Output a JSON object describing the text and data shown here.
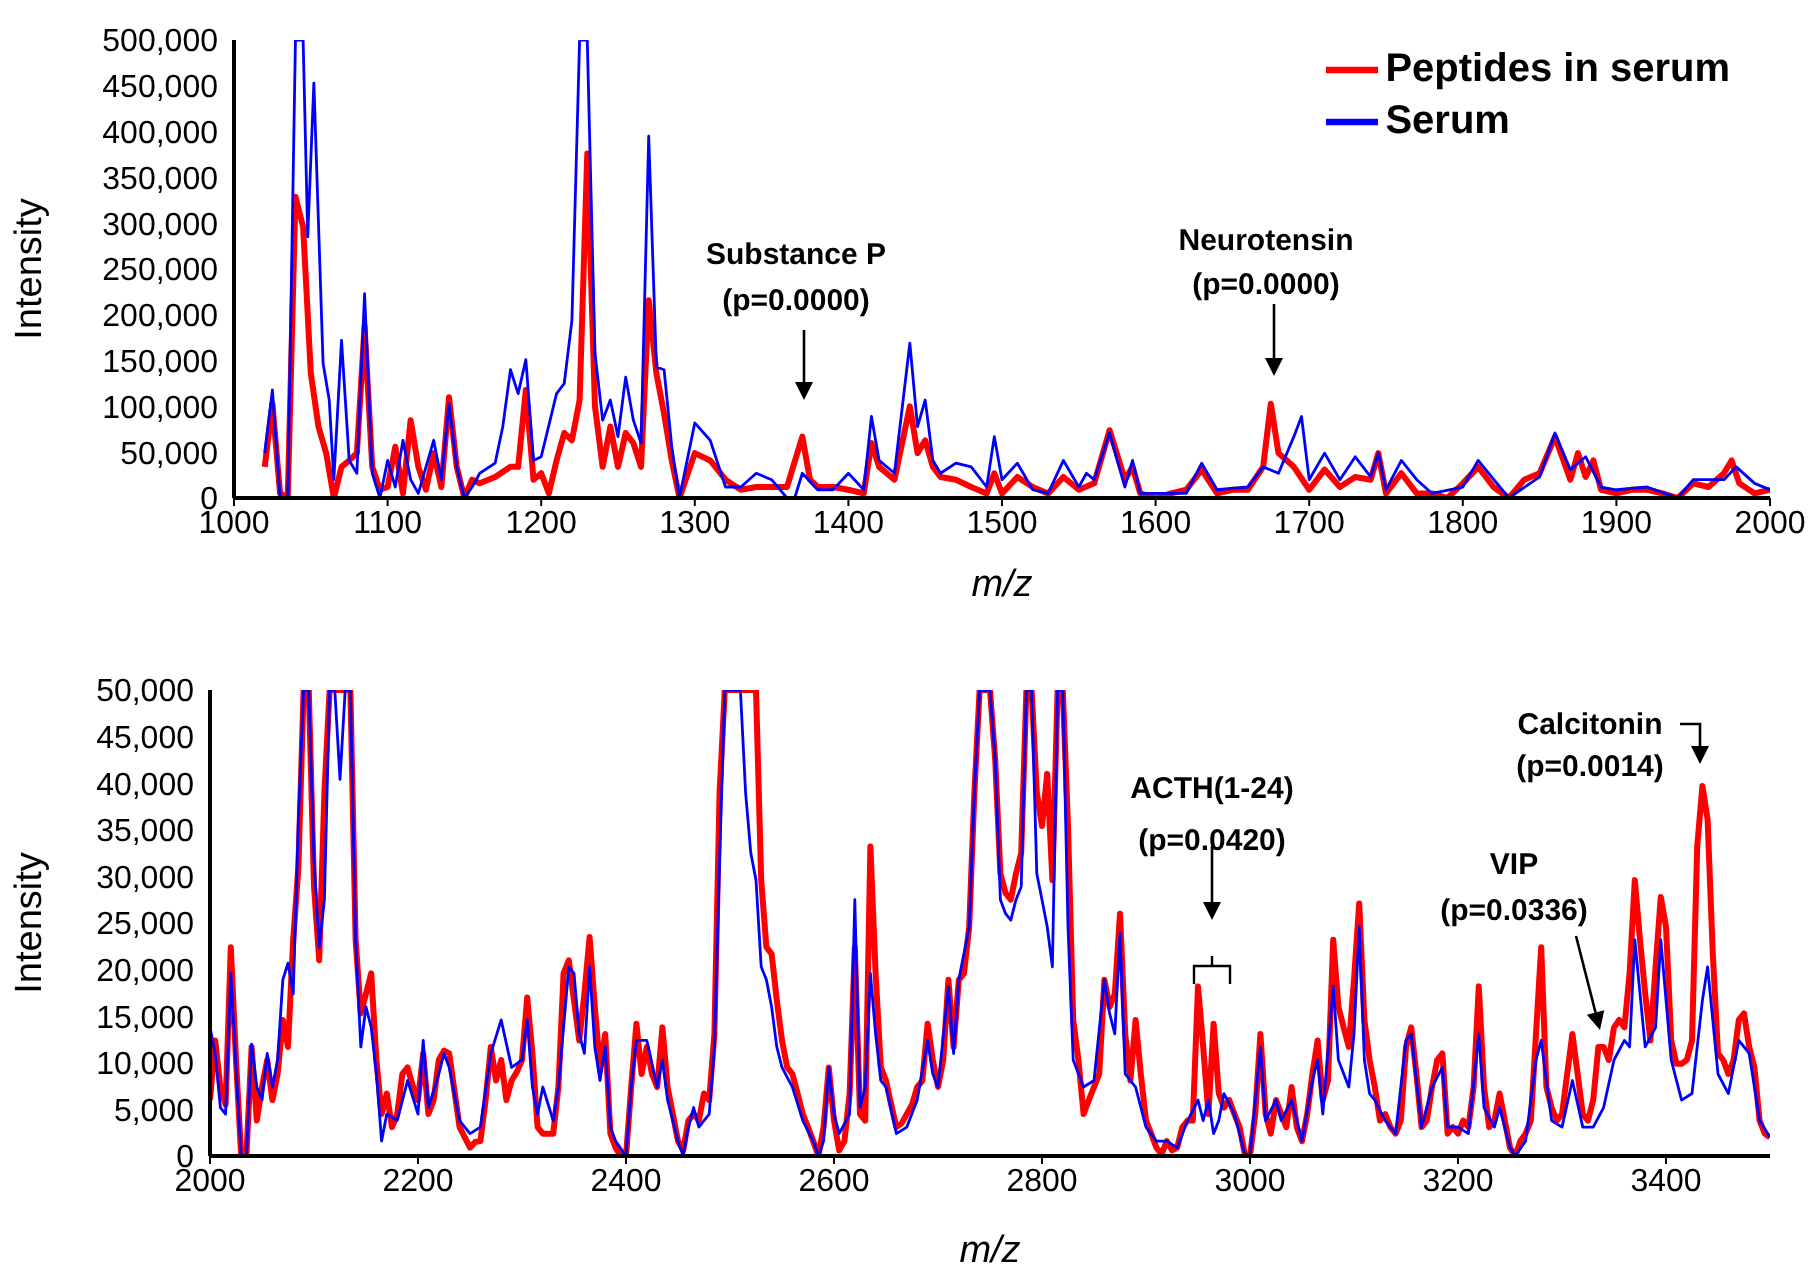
{
  "chart_data": [
    {
      "type": "line",
      "xlabel": "m/z",
      "ylabel": "Intensity",
      "xlim": [
        1000,
        2000
      ],
      "xticks": [
        1000,
        1100,
        1200,
        1300,
        1400,
        1500,
        1600,
        1700,
        1800,
        1900,
        2000
      ],
      "ylim": [
        0,
        500000
      ],
      "yticks": [
        0,
        {
          "value": 50000,
          "label": "50,000"
        },
        {
          "value": 100000,
          "label": "100,000"
        },
        {
          "value": 150000,
          "label": "150,000"
        },
        {
          "value": 200000,
          "label": "200,000"
        },
        {
          "value": 250000,
          "label": "250,000"
        },
        {
          "value": 300000,
          "label": "300,000"
        },
        {
          "value": 350000,
          "label": "350,000"
        },
        {
          "value": 400000,
          "label": "400,000"
        },
        {
          "value": 450000,
          "label": "450,000"
        },
        {
          "value": 500000,
          "label": "500,000"
        }
      ],
      "legend": "top right",
      "series": [
        {
          "name": "Peptides in serum",
          "color": "#ff0000",
          "x": [
            1020,
            1025,
            1030,
            1035,
            1040,
            1045,
            1050,
            1055,
            1060,
            1065,
            1070,
            1075,
            1080,
            1085,
            1090,
            1095,
            1100,
            1105,
            1110,
            1115,
            1120,
            1125,
            1130,
            1135,
            1140,
            1145,
            1150,
            1155,
            1160,
            1170,
            1180,
            1185,
            1190,
            1195,
            1200,
            1205,
            1210,
            1215,
            1220,
            1225,
            1230,
            1235,
            1240,
            1245,
            1250,
            1255,
            1260,
            1265,
            1270,
            1275,
            1280,
            1285,
            1290,
            1300,
            1310,
            1320,
            1330,
            1340,
            1350,
            1360,
            1370,
            1375,
            1380,
            1390,
            1400,
            1410,
            1415,
            1420,
            1430,
            1440,
            1445,
            1450,
            1455,
            1460,
            1470,
            1480,
            1490,
            1495,
            1500,
            1510,
            1520,
            1530,
            1540,
            1550,
            1560,
            1570,
            1580,
            1585,
            1590,
            1600,
            1610,
            1620,
            1630,
            1640,
            1650,
            1660,
            1670,
            1675,
            1680,
            1690,
            1700,
            1710,
            1720,
            1730,
            1740,
            1745,
            1750,
            1760,
            1770,
            1780,
            1790,
            1800,
            1810,
            1820,
            1830,
            1840,
            1850,
            1860,
            1870,
            1875,
            1880,
            1885,
            1890,
            1900,
            1910,
            1920,
            1930,
            1940,
            1950,
            1960,
            1970,
            1975,
            1980,
            1990,
            2000
          ],
          "values": [
            34000,
            103000,
            5000,
            0,
            329000,
            296000,
            136000,
            78000,
            49000,
            0,
            34000,
            41000,
            49000,
            187000,
            34000,
            9000,
            12000,
            56000,
            5000,
            85000,
            34000,
            9000,
            49000,
            12000,
            110000,
            34000,
            0,
            20000,
            16000,
            23000,
            34000,
            34000,
            118000,
            20000,
            27000,
            5000,
            41000,
            71000,
            63000,
            107000,
            376000,
            100000,
            34000,
            78000,
            34000,
            71000,
            60000,
            34000,
            216000,
            136000,
            92000,
            41000,
            0,
            49000,
            41000,
            20000,
            9000,
            12000,
            12000,
            12000,
            67000,
            20000,
            12000,
            12000,
            9000,
            5000,
            60000,
            34000,
            20000,
            100000,
            49000,
            63000,
            34000,
            23000,
            20000,
            12000,
            5000,
            27000,
            5000,
            23000,
            12000,
            5000,
            23000,
            9000,
            16000,
            74000,
            20000,
            34000,
            5000,
            0,
            5000,
            9000,
            31000,
            5000,
            9000,
            9000,
            34000,
            103000,
            49000,
            34000,
            9000,
            31000,
            12000,
            23000,
            20000,
            49000,
            5000,
            27000,
            5000,
            5000,
            0,
            16000,
            34000,
            12000,
            0,
            20000,
            27000,
            67000,
            20000,
            49000,
            23000,
            41000,
            9000,
            5000,
            9000,
            9000,
            5000,
            0,
            16000,
            12000,
            27000,
            41000,
            16000,
            5000,
            9000
          ]
        },
        {
          "name": "Serum",
          "color": "#0000ff",
          "x": [
            1020,
            1025,
            1030,
            1035,
            1040,
            1045,
            1048,
            1052,
            1058,
            1062,
            1065,
            1070,
            1075,
            1080,
            1085,
            1090,
            1095,
            1100,
            1105,
            1110,
            1115,
            1120,
            1130,
            1135,
            1140,
            1145,
            1150,
            1155,
            1160,
            1170,
            1175,
            1180,
            1185,
            1190,
            1195,
            1200,
            1210,
            1215,
            1220,
            1225,
            1230,
            1235,
            1240,
            1245,
            1250,
            1255,
            1260,
            1265,
            1270,
            1275,
            1280,
            1285,
            1290,
            1300,
            1310,
            1320,
            1330,
            1340,
            1350,
            1360,
            1365,
            1370,
            1380,
            1390,
            1400,
            1410,
            1415,
            1420,
            1430,
            1440,
            1445,
            1450,
            1455,
            1460,
            1470,
            1480,
            1490,
            1495,
            1500,
            1510,
            1520,
            1530,
            1540,
            1550,
            1555,
            1560,
            1570,
            1580,
            1585,
            1590,
            1600,
            1620,
            1630,
            1640,
            1660,
            1670,
            1680,
            1690,
            1695,
            1700,
            1710,
            1720,
            1730,
            1740,
            1745,
            1750,
            1760,
            1770,
            1780,
            1800,
            1810,
            1830,
            1850,
            1860,
            1870,
            1880,
            1890,
            1900,
            1920,
            1940,
            1950,
            1970,
            1978,
            1990,
            2000
          ],
          "values": [
            49000,
            118000,
            0,
            0,
            500000,
            500000,
            285000,
            453000,
            147000,
            107000,
            20000,
            172000,
            41000,
            27000,
            223000,
            27000,
            0,
            41000,
            12000,
            63000,
            20000,
            5000,
            63000,
            20000,
            103000,
            34000,
            0,
            12000,
            27000,
            38000,
            78000,
            140000,
            114000,
            151000,
            41000,
            45000,
            114000,
            125000,
            194000,
            500000,
            500000,
            158000,
            85000,
            107000,
            67000,
            132000,
            85000,
            60000,
            395000,
            143000,
            140000,
            56000,
            0,
            82000,
            63000,
            12000,
            12000,
            27000,
            20000,
            0,
            0,
            27000,
            9000,
            9000,
            27000,
            9000,
            89000,
            41000,
            27000,
            169000,
            78000,
            107000,
            41000,
            27000,
            38000,
            34000,
            12000,
            67000,
            20000,
            38000,
            9000,
            5000,
            41000,
            12000,
            27000,
            20000,
            71000,
            12000,
            41000,
            5000,
            5000,
            5000,
            38000,
            9000,
            12000,
            34000,
            27000,
            67000,
            89000,
            20000,
            49000,
            20000,
            45000,
            23000,
            49000,
            9000,
            41000,
            20000,
            5000,
            12000,
            41000,
            0,
            23000,
            71000,
            31000,
            45000,
            12000,
            9000,
            12000,
            0,
            20000,
            20000,
            34000,
            16000,
            9000
          ]
        }
      ],
      "annotations": [
        "Substance P\n(p=0.0000)",
        "Neurotensin\n(p=0.0000)"
      ]
    },
    {
      "type": "line",
      "xlabel": "m/z",
      "ylabel": "Intensity",
      "xlim": [
        2000,
        3500
      ],
      "xticks": [
        2000,
        2200,
        2400,
        2600,
        2800,
        3000,
        3200,
        3400
      ],
      "ylim": [
        0,
        50000
      ],
      "yticks": [
        0,
        {
          "value": 5000,
          "label": "5,000"
        },
        {
          "value": 10000,
          "label": "10,000"
        },
        {
          "value": 15000,
          "label": "15,000"
        },
        {
          "value": 20000,
          "label": "20,000"
        },
        {
          "value": 25000,
          "label": "25,000"
        },
        {
          "value": 30000,
          "label": "30,000"
        },
        {
          "value": 35000,
          "label": "35,000"
        },
        {
          "value": 40000,
          "label": "40,000"
        },
        {
          "value": 45000,
          "label": "45,000"
        },
        {
          "value": 50000,
          "label": "50,000"
        }
      ],
      "series": [
        {
          "color": "#ff0000",
          "x": [
            2000,
            2005,
            2010,
            2015,
            2020,
            2025,
            2030,
            2035,
            2040,
            2045,
            2050,
            2055,
            2060,
            2065,
            2070,
            2075,
            2080,
            2085,
            2090,
            2095,
            2100,
            2105,
            2110,
            2115,
            2120,
            2125,
            2130,
            2135,
            2140,
            2145,
            2150,
            2155,
            2160,
            2165,
            2170,
            2175,
            2180,
            2185,
            2190,
            2195,
            2200,
            2205,
            2210,
            2215,
            2220,
            2225,
            2230,
            2235,
            2240,
            2245,
            2250,
            2255,
            2260,
            2265,
            2270,
            2275,
            2280,
            2285,
            2290,
            2295,
            2300,
            2305,
            2310,
            2315,
            2320,
            2325,
            2330,
            2335,
            2340,
            2345,
            2350,
            2355,
            2360,
            2365,
            2370,
            2375,
            2380,
            2385,
            2390,
            2395,
            2400,
            2405,
            2410,
            2415,
            2420,
            2425,
            2430,
            2435,
            2440,
            2445,
            2450,
            2455,
            2460,
            2465,
            2470,
            2475,
            2480,
            2485,
            2490,
            2495,
            2500,
            2505,
            2510,
            2515,
            2520,
            2525,
            2530,
            2535,
            2540,
            2545,
            2550,
            2555,
            2560,
            2565,
            2570,
            2575,
            2580,
            2585,
            2590,
            2595,
            2600,
            2605,
            2610,
            2615,
            2620,
            2625,
            2630,
            2635,
            2640,
            2645,
            2650,
            2655,
            2660,
            2665,
            2670,
            2675,
            2680,
            2685,
            2690,
            2695,
            2700,
            2705,
            2710,
            2715,
            2720,
            2725,
            2730,
            2735,
            2740,
            2745,
            2750,
            2755,
            2760,
            2765,
            2770,
            2775,
            2780,
            2785,
            2790,
            2795,
            2800,
            2805,
            2810,
            2815,
            2820,
            2825,
            2830,
            2835,
            2840,
            2845,
            2850,
            2855,
            2860,
            2865,
            2870,
            2875,
            2880,
            2885,
            2890,
            2895,
            2900,
            2905,
            2910,
            2915,
            2920,
            2925,
            2930,
            2935,
            2940,
            2945,
            2950,
            2955,
            2960,
            2965,
            2970,
            2975,
            2980,
            2985,
            2990,
            2995,
            3000,
            3005,
            3010,
            3015,
            3020,
            3025,
            3030,
            3035,
            3040,
            3045,
            3050,
            3055,
            3060,
            3065,
            3070,
            3075,
            3080,
            3085,
            3090,
            3095,
            3100,
            3105,
            3110,
            3115,
            3120,
            3125,
            3130,
            3135,
            3140,
            3145,
            3150,
            3155,
            3160,
            3165,
            3170,
            3175,
            3180,
            3185,
            3190,
            3195,
            3200,
            3205,
            3210,
            3215,
            3220,
            3225,
            3230,
            3235,
            3240,
            3245,
            3250,
            3255,
            3260,
            3265,
            3270,
            3275,
            3280,
            3285,
            3290,
            3295,
            3300,
            3305,
            3310,
            3315,
            3320,
            3325,
            3330,
            3335,
            3340,
            3345,
            3350,
            3355,
            3360,
            3365,
            3370,
            3375,
            3380,
            3385,
            3390,
            3395,
            3400,
            3405,
            3410,
            3415,
            3420,
            3425,
            3430,
            3435,
            3440,
            3445,
            3450,
            3455,
            3460,
            3465,
            3470,
            3475,
            3480,
            3485,
            3490,
            3495,
            3500
          ],
          "values": [
            6000,
            12400,
            7400,
            5500,
            22400,
            10300,
            0,
            0,
            11700,
            3800,
            7400,
            10300,
            6000,
            8800,
            14600,
            11700,
            23200,
            31000,
            50000,
            50000,
            28900,
            21000,
            39000,
            50000,
            50000,
            50000,
            50000,
            50000,
            23200,
            15300,
            17400,
            19600,
            10300,
            4500,
            6700,
            3100,
            4500,
            8800,
            9500,
            7500,
            6000,
            11000,
            4500,
            6000,
            10300,
            11300,
            11000,
            7000,
            3100,
            2000,
            900,
            1500,
            1600,
            6000,
            11700,
            8100,
            10300,
            6000,
            8100,
            9000,
            10300,
            17000,
            11000,
            3100,
            2400,
            2400,
            2400,
            7400,
            19600,
            21000,
            16700,
            12400,
            17400,
            23500,
            16000,
            9500,
            13100,
            2400,
            900,
            0,
            0,
            7400,
            14200,
            8800,
            11700,
            8800,
            7400,
            13800,
            7400,
            4500,
            1600,
            600,
            3800,
            4500,
            3800,
            6700,
            6000,
            13100,
            39000,
            50000,
            50000,
            50000,
            50000,
            50000,
            50000,
            50000,
            29600,
            22400,
            21700,
            16700,
            12400,
            9500,
            8800,
            6700,
            4500,
            3100,
            1600,
            0,
            3100,
            9500,
            3800,
            600,
            1600,
            6700,
            22400,
            4500,
            3800,
            33200,
            19600,
            9500,
            8100,
            5500,
            3100,
            3500,
            4500,
            5500,
            7400,
            8100,
            14200,
            10300,
            7400,
            10300,
            18900,
            11700,
            18900,
            19600,
            24600,
            39000,
            50000,
            50000,
            50000,
            42500,
            30300,
            28200,
            27500,
            30300,
            32500,
            50000,
            50000,
            39000,
            35400,
            41000,
            29600,
            50000,
            50000,
            35400,
            14600,
            10300,
            4500,
            6000,
            7400,
            8800,
            18900,
            16000,
            17400,
            26000,
            13100,
            8100,
            14600,
            8800,
            3800,
            2400,
            900,
            200,
            1600,
            600,
            900,
            3100,
            3800,
            3800,
            18200,
            11700,
            4500,
            14200,
            6700,
            5200,
            6000,
            4500,
            3100,
            200,
            0,
            4500,
            13100,
            4500,
            2400,
            6000,
            4500,
            3100,
            7400,
            3100,
            1600,
            4500,
            8800,
            12400,
            6000,
            8100,
            23200,
            16000,
            13800,
            11700,
            18900,
            27100,
            14600,
            10300,
            7400,
            3800,
            4500,
            3100,
            2400,
            3800,
            11700,
            13800,
            8800,
            3100,
            3800,
            7400,
            10300,
            11000,
            2400,
            3100,
            2400,
            3800,
            3100,
            7400,
            18200,
            7400,
            3100,
            3800,
            6700,
            3800,
            900,
            0,
            1600,
            2400,
            3800,
            13100,
            22400,
            7400,
            5200,
            3800,
            4500,
            8800,
            13100,
            8800,
            4500,
            3800,
            6000,
            11700,
            11700,
            10300,
            13800,
            14600,
            13800,
            19600,
            29600,
            23200,
            17400,
            12400,
            20300,
            27800,
            24600,
            12400,
            9900,
            9900,
            10300,
            12400,
            33200,
            39700,
            36100,
            21700,
            11000,
            10300,
            8800,
            10300,
            14600,
            15300,
            11700,
            9500,
            3800,
            2400,
            2000
          ]
        },
        {
          "color": "#0000ff",
          "x": [
            2000,
            2005,
            2010,
            2015,
            2020,
            2025,
            2030,
            2035,
            2040,
            2045,
            2050,
            2055,
            2060,
            2065,
            2070,
            2075,
            2080,
            2085,
            2090,
            2095,
            2100,
            2105,
            2110,
            2115,
            2120,
            2125,
            2130,
            2135,
            2140,
            2145,
            2150,
            2155,
            2160,
            2165,
            2170,
            2180,
            2190,
            2200,
            2205,
            2210,
            2220,
            2225,
            2230,
            2240,
            2250,
            2260,
            2270,
            2280,
            2290,
            2300,
            2305,
            2310,
            2315,
            2320,
            2330,
            2335,
            2345,
            2350,
            2355,
            2360,
            2365,
            2370,
            2375,
            2380,
            2385,
            2390,
            2400,
            2405,
            2410,
            2420,
            2430,
            2435,
            2440,
            2450,
            2455,
            2460,
            2465,
            2470,
            2480,
            2485,
            2490,
            2495,
            2510,
            2515,
            2520,
            2525,
            2530,
            2535,
            2540,
            2545,
            2550,
            2560,
            2570,
            2580,
            2585,
            2590,
            2595,
            2600,
            2605,
            2615,
            2620,
            2625,
            2630,
            2635,
            2640,
            2645,
            2650,
            2660,
            2670,
            2680,
            2690,
            2695,
            2700,
            2710,
            2715,
            2720,
            2730,
            2735,
            2740,
            2750,
            2755,
            2760,
            2765,
            2770,
            2775,
            2780,
            2785,
            2790,
            2795,
            2800,
            2805,
            2810,
            2815,
            2820,
            2825,
            2830,
            2840,
            2850,
            2860,
            2865,
            2870,
            2875,
            2880,
            2890,
            2900,
            2910,
            2920,
            2930,
            2940,
            2950,
            2955,
            2960,
            2965,
            2970,
            2975,
            2985,
            2995,
            3000,
            3010,
            3015,
            3025,
            3030,
            3040,
            3050,
            3060,
            3065,
            3070,
            3080,
            3085,
            3095,
            3100,
            3105,
            3110,
            3115,
            3120,
            3130,
            3140,
            3150,
            3155,
            3165,
            3175,
            3185,
            3190,
            3200,
            3210,
            3220,
            3225,
            3235,
            3240,
            3250,
            3255,
            3265,
            3275,
            3280,
            3290,
            3300,
            3310,
            3320,
            3330,
            3340,
            3350,
            3360,
            3365,
            3370,
            3380,
            3390,
            3395,
            3405,
            3415,
            3425,
            3435,
            3440,
            3450,
            3460,
            3470,
            3480,
            3490,
            3500
          ],
          "values": [
            13800,
            11000,
            5200,
            4500,
            19600,
            9500,
            0,
            0,
            12000,
            7400,
            6000,
            11000,
            7400,
            10300,
            18900,
            20700,
            17400,
            36100,
            50000,
            50000,
            31800,
            22400,
            27500,
            50000,
            50000,
            40400,
            50000,
            50000,
            23200,
            11700,
            16000,
            13800,
            8800,
            1600,
            4500,
            3800,
            8100,
            4500,
            12400,
            5200,
            8800,
            11000,
            9500,
            3800,
            2400,
            3100,
            11000,
            14600,
            9500,
            10300,
            14600,
            7400,
            4500,
            7400,
            3800,
            7400,
            20300,
            19600,
            13100,
            11000,
            20300,
            11700,
            8100,
            11700,
            3100,
            1600,
            0,
            7400,
            12400,
            12400,
            7400,
            10300,
            6000,
            1600,
            0,
            3100,
            5200,
            3100,
            4500,
            11700,
            31800,
            50000,
            50000,
            39000,
            32500,
            29600,
            20300,
            18900,
            16000,
            11700,
            9500,
            7400,
            3800,
            1600,
            0,
            1600,
            9500,
            4500,
            2400,
            4500,
            27500,
            5200,
            7400,
            19600,
            13100,
            8100,
            7400,
            2400,
            3100,
            6000,
            12400,
            8800,
            7400,
            18200,
            11000,
            18900,
            24600,
            39000,
            50000,
            50000,
            42500,
            27500,
            26000,
            25300,
            27500,
            28900,
            50000,
            50000,
            30300,
            27500,
            24600,
            20300,
            50000,
            50000,
            24600,
            10300,
            7400,
            8100,
            18900,
            15300,
            13100,
            23900,
            8800,
            7400,
            3100,
            1600,
            1600,
            900,
            3800,
            6000,
            3800,
            6000,
            2400,
            3800,
            6700,
            4500,
            200,
            0,
            11700,
            3800,
            6000,
            3800,
            6000,
            1600,
            8100,
            10300,
            4500,
            18200,
            10300,
            7400,
            13100,
            24600,
            10300,
            6700,
            6000,
            3800,
            2400,
            12400,
            13100,
            3100,
            7400,
            9500,
            3100,
            3100,
            2400,
            13100,
            5200,
            3100,
            5200,
            900,
            0,
            1600,
            10300,
            12400,
            3800,
            3100,
            8100,
            3100,
            3100,
            5200,
            10300,
            12400,
            11700,
            23200,
            11700,
            13800,
            23200,
            10300,
            6000,
            6700,
            16700,
            20300,
            8800,
            6700,
            12400,
            11000,
            3800,
            2000
          ]
        }
      ],
      "annotations": [
        "ACTH(1-24)\n(p=0.0420)",
        "VIP\n(p=0.0336)",
        "Calcitonin\n(p=0.0014)"
      ]
    }
  ]
}
